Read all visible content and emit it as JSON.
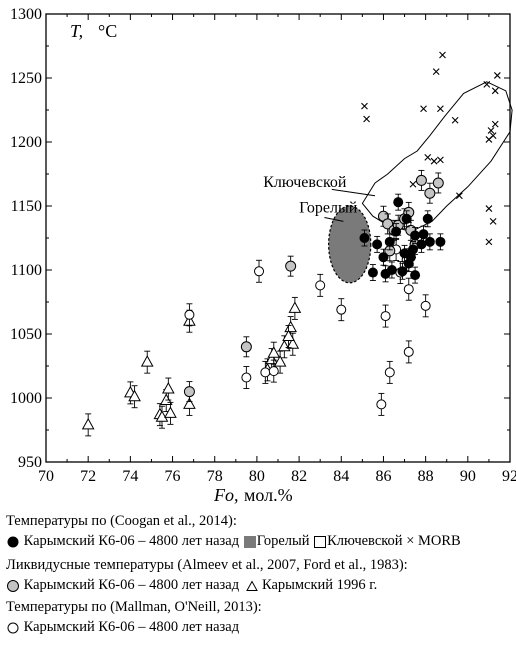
{
  "chart_data": {
    "type": "scatter",
    "title": "",
    "ylabel_italic": "T,",
    "ylabel_unit": "°C",
    "xlabel_italic": "Fo,",
    "xlabel_unit": "мол.%",
    "xlim": [
      70,
      92
    ],
    "ylim": [
      950,
      1300
    ],
    "xticks": [
      70,
      72,
      74,
      76,
      78,
      80,
      82,
      84,
      86,
      88,
      90,
      92
    ],
    "yticks": [
      950,
      1000,
      1050,
      1100,
      1150,
      1200,
      1250,
      1300
    ],
    "grid": false,
    "annotations": [
      {
        "text": "Ключевской",
        "x": 80.3,
        "y": 1165
      },
      {
        "text": "Горелый",
        "x": 82.0,
        "y": 1145
      }
    ],
    "series": [
      {
        "name": "Карымский К6-06 – 4800 лет назад (Coogan et al., 2014)",
        "marker": "filled-circle",
        "points": [
          [
            85.1,
            1125
          ],
          [
            85.5,
            1098
          ],
          [
            85.7,
            1120
          ],
          [
            86.0,
            1110
          ],
          [
            86.1,
            1097
          ],
          [
            86.3,
            1122
          ],
          [
            86.4,
            1100
          ],
          [
            86.6,
            1130
          ],
          [
            86.7,
            1153
          ],
          [
            86.9,
            1099
          ],
          [
            87.0,
            1113
          ],
          [
            87.1,
            1140
          ],
          [
            87.2,
            1105
          ],
          [
            87.3,
            1110
          ],
          [
            87.4,
            1116
          ],
          [
            87.5,
            1096
          ],
          [
            87.5,
            1127
          ],
          [
            87.8,
            1120
          ],
          [
            87.9,
            1128
          ],
          [
            88.1,
            1140
          ],
          [
            88.2,
            1122
          ],
          [
            88.7,
            1122
          ]
        ]
      },
      {
        "name": "Горелый",
        "marker": "filled-ellipse",
        "color": "#7a7a7a",
        "region": {
          "cx": 84.4,
          "cy": 1120,
          "rx": 1.0,
          "ry": 30
        }
      },
      {
        "name": "Ключевской",
        "marker": "open-square",
        "color": "#ffffff",
        "outline": [
          [
            85.6,
            1168
          ],
          [
            86.2,
            1175
          ],
          [
            87.0,
            1187
          ],
          [
            87.6,
            1193
          ],
          [
            88.2,
            1205
          ],
          [
            88.9,
            1220
          ],
          [
            89.8,
            1238
          ],
          [
            90.9,
            1247
          ],
          [
            91.8,
            1240
          ],
          [
            92.1,
            1225
          ],
          [
            92.0,
            1208
          ],
          [
            91.1,
            1185
          ],
          [
            90.0,
            1165
          ],
          [
            89.0,
            1150
          ],
          [
            88.3,
            1138
          ],
          [
            87.3,
            1130
          ],
          [
            86.2,
            1135
          ],
          [
            85.5,
            1142
          ],
          [
            85.0,
            1152
          ],
          [
            85.6,
            1168
          ]
        ]
      },
      {
        "name": "MORB",
        "marker": "x",
        "points": [
          [
            85.1,
            1228
          ],
          [
            85.2,
            1218
          ],
          [
            87.4,
            1167
          ],
          [
            87.9,
            1226
          ],
          [
            88.1,
            1188
          ],
          [
            88.4,
            1185
          ],
          [
            88.5,
            1255
          ],
          [
            88.7,
            1186
          ],
          [
            88.7,
            1226
          ],
          [
            88.8,
            1268
          ],
          [
            89.4,
            1217
          ],
          [
            89.6,
            1158
          ],
          [
            90.9,
            1245
          ],
          [
            91.0,
            1202
          ],
          [
            91.0,
            1148
          ],
          [
            91.0,
            1122
          ],
          [
            91.1,
            1209
          ],
          [
            91.2,
            1205
          ],
          [
            91.2,
            1138
          ],
          [
            91.3,
            1240
          ],
          [
            91.3,
            1214
          ],
          [
            91.4,
            1252
          ]
        ]
      },
      {
        "name": "Карымский К6-06 – 4800 лет назад (Almeev et al., 2007, Ford et al., 1983)",
        "marker": "gray-circle",
        "points": [
          [
            76.8,
            1005
          ],
          [
            79.5,
            1040
          ],
          [
            81.6,
            1103
          ],
          [
            86.0,
            1142
          ],
          [
            86.2,
            1136
          ],
          [
            86.3,
            1115
          ],
          [
            86.5,
            1131
          ],
          [
            86.7,
            1135
          ],
          [
            87.0,
            1140
          ],
          [
            87.2,
            1145
          ],
          [
            87.3,
            1131
          ],
          [
            87.5,
            1120
          ],
          [
            87.8,
            1170
          ],
          [
            88.2,
            1160
          ],
          [
            88.6,
            1168
          ]
        ]
      },
      {
        "name": "Карымский 1996 г.",
        "marker": "triangle",
        "points": [
          [
            72.0,
            979
          ],
          [
            74.0,
            1004
          ],
          [
            74.2,
            1001
          ],
          [
            74.8,
            1028
          ],
          [
            75.4,
            987
          ],
          [
            75.5,
            985
          ],
          [
            75.7,
            998
          ],
          [
            75.8,
            1007
          ],
          [
            75.9,
            988
          ],
          [
            76.8,
            995
          ],
          [
            76.8,
            1060
          ],
          [
            80.5,
            1022
          ],
          [
            80.7,
            1030
          ],
          [
            80.8,
            1035
          ],
          [
            81.1,
            1028
          ],
          [
            81.3,
            1040
          ],
          [
            81.6,
            1055
          ],
          [
            81.7,
            1042
          ],
          [
            81.8,
            1070
          ],
          [
            81.5,
            1048
          ]
        ]
      },
      {
        "name": "Карымский К6-06 – 4800 лет назад (Mallman, O'Neill, 2013)",
        "marker": "open-circle",
        "points": [
          [
            76.8,
            1065
          ],
          [
            79.5,
            1016
          ],
          [
            80.1,
            1099
          ],
          [
            80.4,
            1020
          ],
          [
            80.8,
            1021
          ],
          [
            83.0,
            1088
          ],
          [
            84.0,
            1069
          ],
          [
            85.9,
            995
          ],
          [
            86.1,
            1064
          ],
          [
            86.3,
            1020
          ],
          [
            87.1,
            1108
          ],
          [
            87.2,
            1085
          ],
          [
            87.2,
            1036
          ],
          [
            88.0,
            1072
          ],
          [
            86.6,
            1116
          ],
          [
            86.8,
            1098
          ]
        ]
      }
    ]
  },
  "legend": {
    "line1": "Температуры по (Coogan et al., 2014):",
    "line2_karym": "Карымский К6-06 – 4800 лет назад",
    "line2_gorel": "Горелый",
    "line2_klyuch": "Ключевской",
    "line2_morb": "MORB",
    "line3": "Ликвидусные температуры (Almeev et al., 2007, Ford et al., 1983):",
    "line4_karym": "Карымский К6-06 – 4800 лет назад",
    "line4_tri": "Карымский 1996 г.",
    "line5": "Температуры по (Mallman, O'Neill, 2013):",
    "line6_karym": "Карымский К6-06 – 4800 лет назад"
  }
}
